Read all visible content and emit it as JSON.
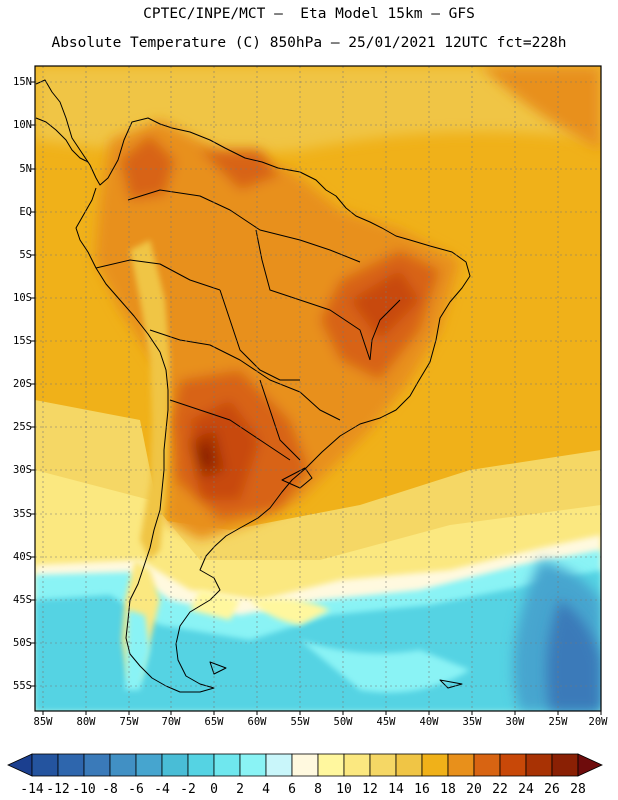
{
  "header": {
    "line1": "CPTEC/INPE/MCT –  Eta Model 15km – GFS",
    "line2": "Absolute Temperature (C) 850hPa – 25/01/2021 12UTC fct=228h"
  },
  "map": {
    "lat_labels": [
      "15N",
      "10N",
      "5N",
      "EQ",
      "5S",
      "10S",
      "15S",
      "20S",
      "25S",
      "30S",
      "35S",
      "40S",
      "45S",
      "50S",
      "55S"
    ],
    "lon_labels": [
      "85W",
      "80W",
      "75W",
      "70W",
      "65W",
      "60W",
      "55W",
      "50W",
      "45W",
      "40W",
      "35W",
      "30W",
      "25W",
      "20W"
    ]
  },
  "colorbar": {
    "labels": [
      "-14",
      "-12",
      "-10",
      "-8",
      "-6",
      "-4",
      "-2",
      "0",
      "2",
      "4",
      "6",
      "8",
      "10",
      "12",
      "14",
      "16",
      "18",
      "20",
      "22",
      "24",
      "26",
      "28"
    ],
    "colors": [
      "#1b3f8f",
      "#24549f",
      "#2e66ad",
      "#3a7ab9",
      "#4190c4",
      "#46a5cf",
      "#49bdd6",
      "#55d3e3",
      "#6fe7ee",
      "#8af3f5",
      "#c9f6fa",
      "#fff9df",
      "#fff79e",
      "#fbe880",
      "#f5d765",
      "#f0c545",
      "#f0b119",
      "#e8901b",
      "#d86412",
      "#c84808",
      "#a83204",
      "#8a2004",
      "#6e0c0c"
    ]
  }
}
